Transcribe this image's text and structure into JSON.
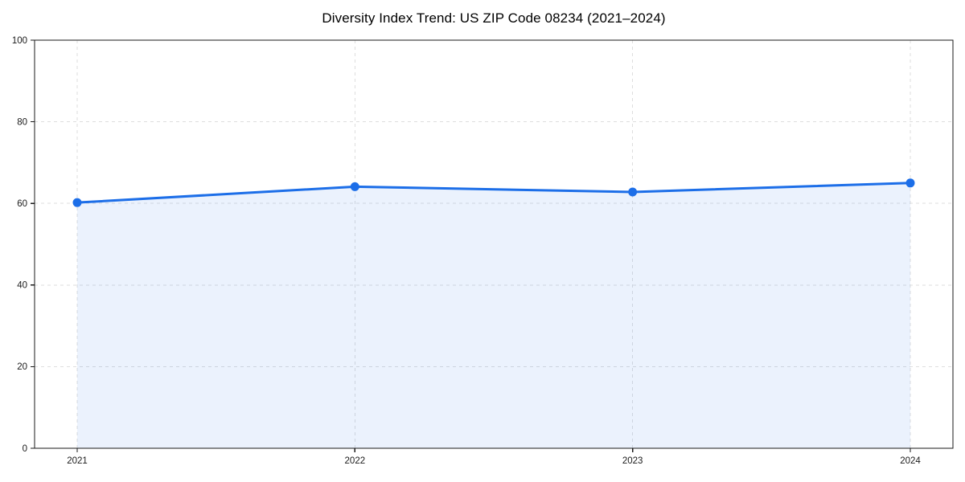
{
  "chart_data": {
    "type": "line",
    "title": "Diversity Index Trend: US ZIP Code 08234 (2021–2024)",
    "categories": [
      "2021",
      "2022",
      "2023",
      "2024"
    ],
    "series": [
      {
        "name": "Diversity Index",
        "values": [
          60.2,
          64.1,
          62.8,
          65.0
        ]
      }
    ],
    "xlabel": "",
    "ylabel": "",
    "ylim": [
      0,
      100
    ],
    "yticks": [
      0,
      20,
      40,
      60,
      80,
      100
    ],
    "grid": true,
    "grid_style": "dashed",
    "legend": false,
    "area_under_line": true,
    "style": {
      "line_color": "#1c6ee8",
      "marker_color": "#1c6ee8",
      "area_fill": "rgba(28,110,232,0.09)",
      "grid_color": "#dedede",
      "spine_color": "#1a1a1a",
      "tick_color": "#1a1a1a",
      "tick_label_color": "#1a1a1a",
      "title_color": "#000000",
      "background": "#ffffff"
    }
  }
}
